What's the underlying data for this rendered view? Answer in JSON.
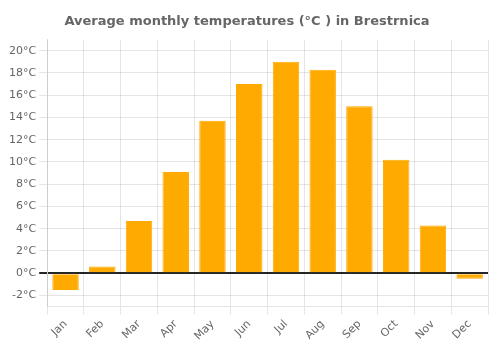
{
  "chart_data": {
    "type": "bar",
    "title": "Average monthly temperatures (°C ) in Brestrnica",
    "categories": [
      "Jan",
      "Feb",
      "Mar",
      "Apr",
      "May",
      "Jun",
      "Jul",
      "Aug",
      "Sep",
      "Oct",
      "Nov",
      "Dec"
    ],
    "values": [
      -1.5,
      0.6,
      4.7,
      9.1,
      13.7,
      17.0,
      19.0,
      18.3,
      15.0,
      10.2,
      4.3,
      -0.5
    ],
    "color": "#FFAA00",
    "ylim": [
      -3,
      21
    ],
    "yticks": [
      {
        "value": -2,
        "label": "-2°C"
      },
      {
        "value": 0,
        "label": "0°C"
      },
      {
        "value": 2,
        "label": "2°C"
      },
      {
        "value": 4,
        "label": "4°C"
      },
      {
        "value": 6,
        "label": "6°C"
      },
      {
        "value": 8,
        "label": "8°C"
      },
      {
        "value": 10,
        "label": "10°C"
      },
      {
        "value": 12,
        "label": "12°C"
      },
      {
        "value": 14,
        "label": "14°C"
      },
      {
        "value": 16,
        "label": "16°C"
      },
      {
        "value": 18,
        "label": "18°C"
      },
      {
        "value": 20,
        "label": "20°C"
      }
    ],
    "grid": true
  }
}
